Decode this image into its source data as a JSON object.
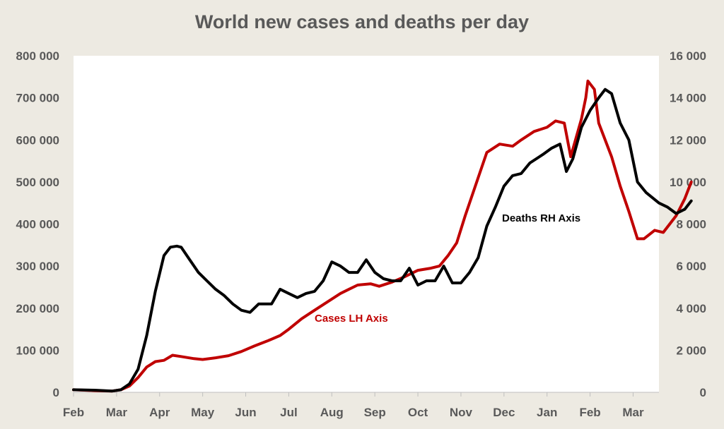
{
  "chart_data": {
    "type": "line",
    "title": "World new cases and deaths per day",
    "x_categories": [
      "Feb",
      "Mar",
      "Apr",
      "May",
      "Jun",
      "Jul",
      "Aug",
      "Sep",
      "Oct",
      "Nov",
      "Dec",
      "Jan",
      "Feb",
      "Mar"
    ],
    "left_axis": {
      "ylim": [
        0,
        800000
      ],
      "ticks": [
        "0",
        "100 000",
        "200 000",
        "300 000",
        "400 000",
        "500 000",
        "600 000",
        "700 000",
        "800 000"
      ]
    },
    "right_axis": {
      "ylim": [
        0,
        16000
      ],
      "ticks": [
        "0",
        "2 000",
        "4 000",
        "6 000",
        "8 000",
        "10 000",
        "12 000",
        "14 000",
        "16 000"
      ]
    },
    "grid": false,
    "series": [
      {
        "name": "Cases",
        "annotation": "Cases LH Axis",
        "axis": "left",
        "color": "#c00000",
        "points": [
          [
            0,
            6000
          ],
          [
            0.5,
            4000
          ],
          [
            0.9,
            3000
          ],
          [
            1.1,
            6000
          ],
          [
            1.3,
            15000
          ],
          [
            1.5,
            35000
          ],
          [
            1.7,
            60000
          ],
          [
            1.9,
            73000
          ],
          [
            2.1,
            76000
          ],
          [
            2.3,
            88000
          ],
          [
            2.5,
            85000
          ],
          [
            2.8,
            80000
          ],
          [
            3.0,
            78000
          ],
          [
            3.3,
            82000
          ],
          [
            3.6,
            87000
          ],
          [
            3.9,
            97000
          ],
          [
            4.2,
            110000
          ],
          [
            4.5,
            122000
          ],
          [
            4.8,
            135000
          ],
          [
            5.0,
            150000
          ],
          [
            5.3,
            175000
          ],
          [
            5.6,
            195000
          ],
          [
            5.9,
            215000
          ],
          [
            6.2,
            235000
          ],
          [
            6.4,
            245000
          ],
          [
            6.6,
            255000
          ],
          [
            6.9,
            258000
          ],
          [
            7.1,
            252000
          ],
          [
            7.4,
            262000
          ],
          [
            7.7,
            275000
          ],
          [
            8.0,
            290000
          ],
          [
            8.3,
            295000
          ],
          [
            8.5,
            300000
          ],
          [
            8.7,
            325000
          ],
          [
            8.9,
            355000
          ],
          [
            9.1,
            420000
          ],
          [
            9.4,
            510000
          ],
          [
            9.6,
            570000
          ],
          [
            9.9,
            590000
          ],
          [
            10.2,
            585000
          ],
          [
            10.4,
            600000
          ],
          [
            10.7,
            620000
          ],
          [
            11.0,
            630000
          ],
          [
            11.2,
            645000
          ],
          [
            11.4,
            640000
          ],
          [
            11.55,
            560000
          ],
          [
            11.8,
            650000
          ],
          [
            11.9,
            700000
          ],
          [
            11.95,
            740000
          ],
          [
            12.1,
            720000
          ],
          [
            12.2,
            640000
          ],
          [
            12.5,
            560000
          ],
          [
            12.7,
            490000
          ],
          [
            12.9,
            430000
          ],
          [
            13.1,
            365000
          ],
          [
            13.25,
            365000
          ],
          [
            13.5,
            385000
          ],
          [
            13.7,
            380000
          ],
          [
            14.0,
            420000
          ],
          [
            14.2,
            460000
          ],
          [
            14.35,
            500000
          ]
        ]
      },
      {
        "name": "Deaths",
        "annotation": "Deaths RH Axis",
        "axis": "right",
        "color": "#000000",
        "points": [
          [
            0,
            120
          ],
          [
            0.5,
            100
          ],
          [
            0.9,
            60
          ],
          [
            1.1,
            120
          ],
          [
            1.3,
            400
          ],
          [
            1.5,
            1100
          ],
          [
            1.7,
            2700
          ],
          [
            1.9,
            4800
          ],
          [
            2.1,
            6500
          ],
          [
            2.25,
            6900
          ],
          [
            2.4,
            6950
          ],
          [
            2.5,
            6900
          ],
          [
            2.7,
            6300
          ],
          [
            2.9,
            5700
          ],
          [
            3.1,
            5300
          ],
          [
            3.3,
            4900
          ],
          [
            3.5,
            4600
          ],
          [
            3.7,
            4200
          ],
          [
            3.9,
            3900
          ],
          [
            4.1,
            3800
          ],
          [
            4.3,
            4200
          ],
          [
            4.6,
            4200
          ],
          [
            4.8,
            4900
          ],
          [
            5.0,
            4700
          ],
          [
            5.2,
            4500
          ],
          [
            5.4,
            4700
          ],
          [
            5.6,
            4800
          ],
          [
            5.8,
            5300
          ],
          [
            6.0,
            6200
          ],
          [
            6.2,
            6000
          ],
          [
            6.4,
            5700
          ],
          [
            6.6,
            5700
          ],
          [
            6.8,
            6300
          ],
          [
            7.0,
            5700
          ],
          [
            7.2,
            5400
          ],
          [
            7.4,
            5300
          ],
          [
            7.6,
            5300
          ],
          [
            7.8,
            5900
          ],
          [
            8.0,
            5100
          ],
          [
            8.2,
            5300
          ],
          [
            8.4,
            5300
          ],
          [
            8.6,
            6000
          ],
          [
            8.8,
            5200
          ],
          [
            9.0,
            5200
          ],
          [
            9.2,
            5700
          ],
          [
            9.4,
            6400
          ],
          [
            9.6,
            7900
          ],
          [
            9.8,
            8800
          ],
          [
            10.0,
            9800
          ],
          [
            10.2,
            10300
          ],
          [
            10.4,
            10400
          ],
          [
            10.6,
            10900
          ],
          [
            10.9,
            11300
          ],
          [
            11.1,
            11600
          ],
          [
            11.3,
            11800
          ],
          [
            11.45,
            10500
          ],
          [
            11.6,
            11100
          ],
          [
            11.8,
            12600
          ],
          [
            12.0,
            13400
          ],
          [
            12.2,
            14000
          ],
          [
            12.35,
            14400
          ],
          [
            12.5,
            14200
          ],
          [
            12.7,
            12800
          ],
          [
            12.9,
            12000
          ],
          [
            13.1,
            10000
          ],
          [
            13.3,
            9500
          ],
          [
            13.6,
            9000
          ],
          [
            13.8,
            8800
          ],
          [
            14.0,
            8500
          ],
          [
            14.2,
            8700
          ],
          [
            14.35,
            9100
          ]
        ]
      }
    ]
  }
}
